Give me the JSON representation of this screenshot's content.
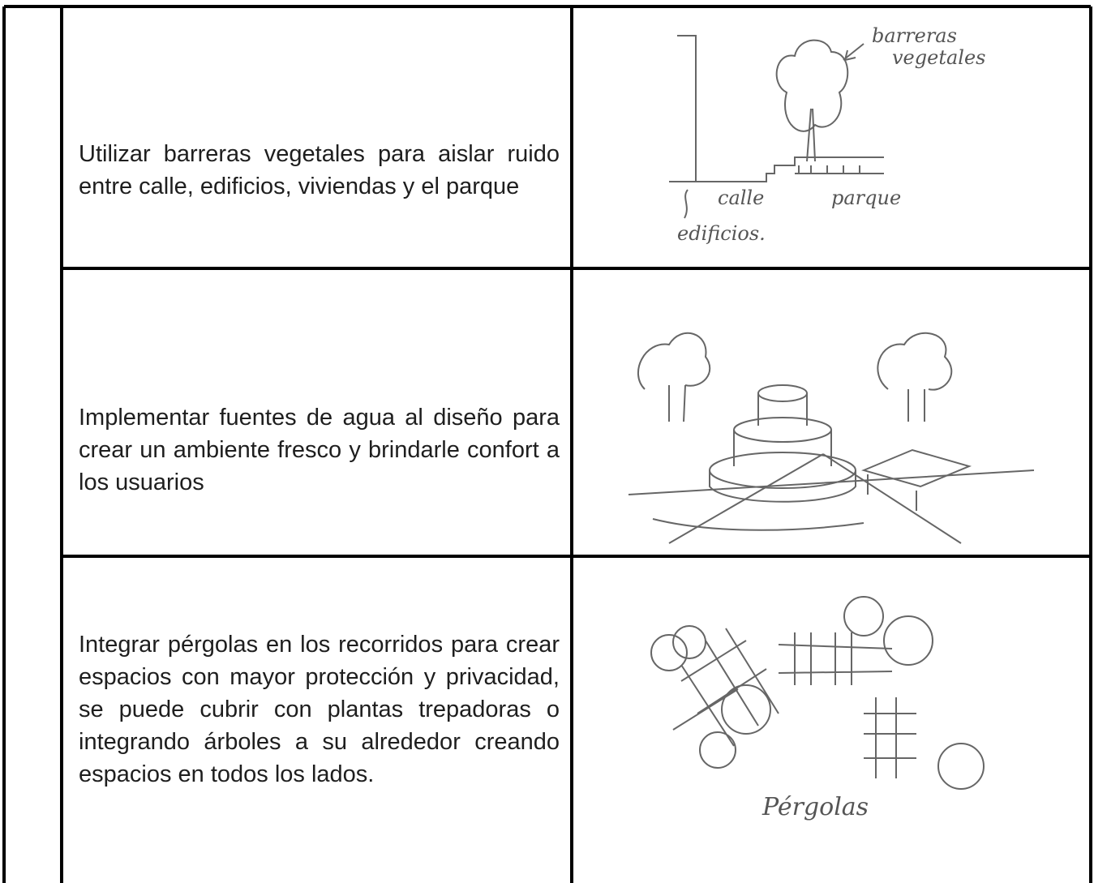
{
  "table": {
    "rows": [
      {
        "text": "Utilizar barreras vegetales para aislar ruido entre calle, edificios, viviendas y el parque",
        "sketch_labels": [
          "barreras",
          "vegetales",
          "calle",
          "parque",
          "edificios."
        ]
      },
      {
        "text": "Implementar fuentes de agua al diseño para crear un ambiente fresco y brindarle confort a los usuarios"
      },
      {
        "text": "Integrar pérgolas en los recorridos para crear espacios con mayor protección y privacidad, se puede cubrir con plantas trepadoras o integrando árboles a su alrededor creando espacios en todos los lados.",
        "sketch_labels": [
          "Pérgolas"
        ]
      }
    ]
  }
}
